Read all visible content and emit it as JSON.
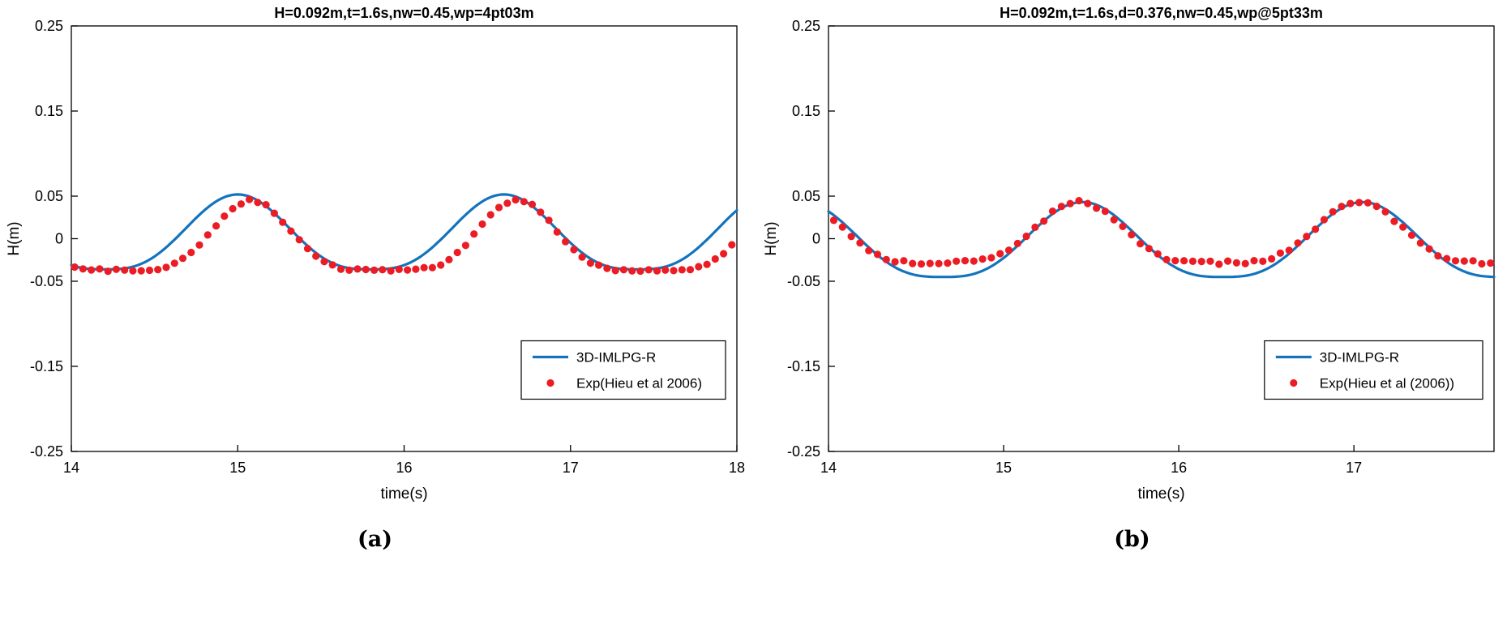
{
  "panels": [
    {
      "label": "(a)"
    },
    {
      "label": "(b)"
    }
  ],
  "chart_data": [
    {
      "type": "line",
      "title": "H=0.092m,t=1.6s,nw=0.45,wp=4pt03m",
      "xlabel": "time(s)",
      "ylabel": "H(m)",
      "xlim": [
        14,
        18
      ],
      "ylim": [
        -0.25,
        0.25
      ],
      "xticks": [
        {
          "v": 14,
          "label": "14"
        },
        {
          "v": 15,
          "label": "15"
        },
        {
          "v": 16,
          "label": "16"
        },
        {
          "v": 17,
          "label": "17"
        },
        {
          "v": 18,
          "label": "18"
        }
      ],
      "yticks": [
        {
          "v": 0.25,
          "label": "0.25"
        },
        {
          "v": 0.15,
          "label": "0.15"
        },
        {
          "v": 0.05,
          "label": "0.05"
        },
        {
          "v": 0,
          "label": "0"
        },
        {
          "v": -0.05,
          "label": "-0.05"
        },
        {
          "v": -0.15,
          "label": "-0.15"
        },
        {
          "v": -0.25,
          "label": "-0.25"
        }
      ],
      "grid": false,
      "legend_position": "lower-right",
      "axis_color": "#000000",
      "series": [
        {
          "name": "3D-IMLPG-R",
          "style": "line",
          "color": "#1373bd",
          "line_width": 3.2,
          "model": {
            "crest": 0.052,
            "trough": -0.036,
            "period": 1.6,
            "t_crest": 15.0,
            "sharpness": 1.5
          },
          "sample": {
            "start": 14,
            "end": 18,
            "dt": 0.02
          },
          "noise": 0
        },
        {
          "name": "Exp(Hieu et al 2006)",
          "style": "scatter",
          "color": "#ec1c24",
          "marker_radius": 4.6,
          "model": {
            "crest": 0.045,
            "trough": -0.037,
            "period": 1.6,
            "t_crest": 15.08,
            "sharpness": 2.5
          },
          "sample": {
            "start": 14.02,
            "end": 17.98,
            "dt": 0.05
          },
          "noise": 0.0015
        }
      ]
    },
    {
      "type": "line",
      "title": "H=0.092m,t=1.6s,d=0.376,nw=0.45,wp@5pt33m",
      "xlabel": "time(s)",
      "ylabel": "H(m)",
      "xlim": [
        14,
        17.8
      ],
      "ylim": [
        -0.25,
        0.25
      ],
      "xticks": [
        {
          "v": 14,
          "label": "14"
        },
        {
          "v": 15,
          "label": "15"
        },
        {
          "v": 16,
          "label": "16"
        },
        {
          "v": 17,
          "label": "17"
        }
      ],
      "yticks": [
        {
          "v": 0.25,
          "label": "0.25"
        },
        {
          "v": 0.15,
          "label": "0.15"
        },
        {
          "v": 0.05,
          "label": "0.05"
        },
        {
          "v": 0,
          "label": "0"
        },
        {
          "v": -0.05,
          "label": "-0.05"
        },
        {
          "v": -0.15,
          "label": "-0.15"
        },
        {
          "v": -0.25,
          "label": "-0.25"
        }
      ],
      "grid": false,
      "legend_position": "lower-right",
      "axis_color": "#000000",
      "series": [
        {
          "name": "3D-IMLPG-R",
          "style": "line",
          "color": "#1373bd",
          "line_width": 3.2,
          "model": {
            "crest": 0.043,
            "trough": -0.045,
            "period": 1.6,
            "t_crest": 15.45,
            "sharpness": 1.5
          },
          "sample": {
            "start": 14,
            "end": 17.8,
            "dt": 0.02
          },
          "noise": 0
        },
        {
          "name": "Exp(Hieu et al (2006))",
          "style": "scatter",
          "color": "#ec1c24",
          "marker_radius": 4.6,
          "model": {
            "crest": 0.043,
            "trough": -0.028,
            "period": 1.6,
            "t_crest": 15.43,
            "sharpness": 2.2
          },
          "sample": {
            "start": 14.03,
            "end": 17.78,
            "dt": 0.05
          },
          "noise": 0.002
        }
      ]
    }
  ]
}
